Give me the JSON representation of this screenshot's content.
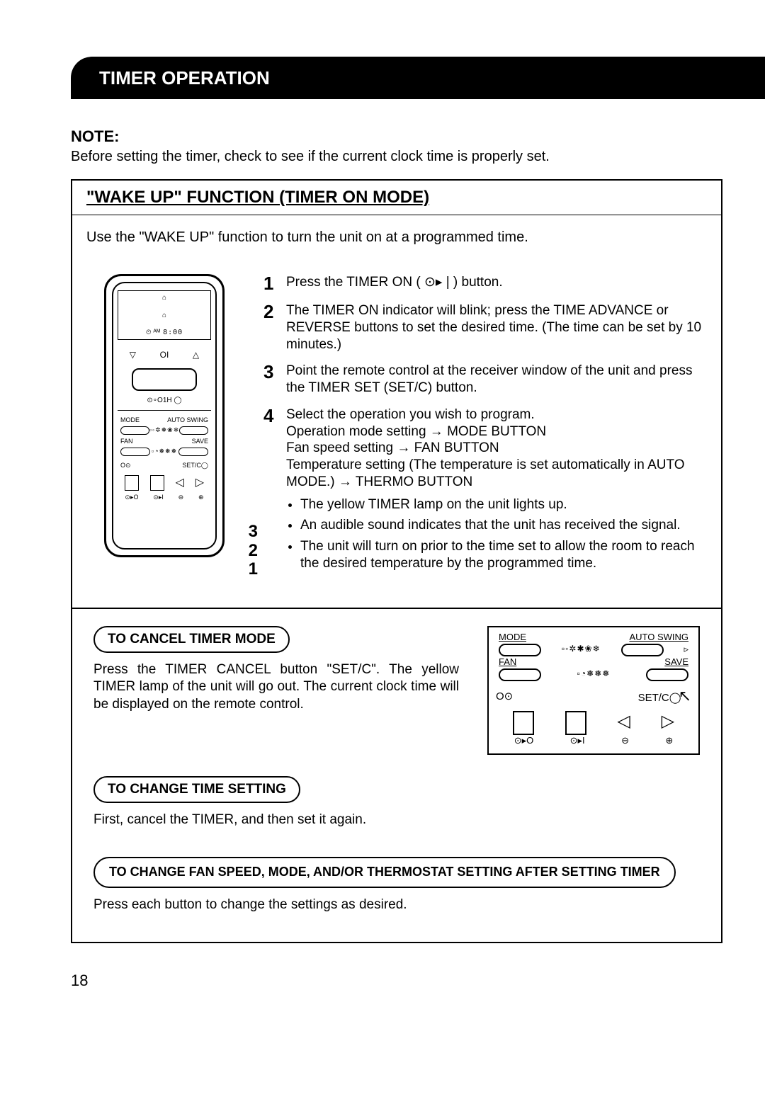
{
  "header": "TIMER OPERATION",
  "note_label": "NOTE:",
  "note_text": "Before setting the timer, check to see if the current clock time is properly set.",
  "section_heading": "\"WAKE UP\" FUNCTION (TIMER ON MODE)",
  "intro": "Use the \"WAKE UP\" function to turn the unit on at a programmed time.",
  "remote": {
    "lcd_time": "8:00",
    "lcd_sym": "⏲ ᴬᴹ",
    "row_sym_left": "▽",
    "row_sym_mid": "OI",
    "row_sym_right": "△",
    "small_text": "⊙∘O1H ◯",
    "label_mode": "MODE",
    "label_auto": "AUTO SWING",
    "dots1": "▫◦✲❅❀❄",
    "label_fan": "FAN",
    "label_save": "SAVE",
    "dots2": "▫◔❅❅❅",
    "mid_left": "O⊙",
    "mid_right": "SET/C◯",
    "ur1": "⊙▸O",
    "ur2": "⊙▸I",
    "ur3": "⊖",
    "ur4": "⊕",
    "side3": "3",
    "side2": "2",
    "side1": "1"
  },
  "steps": [
    {
      "n": "1",
      "body": "Press the TIMER ON ( ⊙▸ | ) button."
    },
    {
      "n": "2",
      "body": "The TIMER ON indicator will blink; press the TIME ADVANCE or REVERSE buttons to set the desired time. (The time can be set by 10 minutes.)"
    },
    {
      "n": "3",
      "body": "Point the remote control at the receiver window of the unit and press the TIMER SET (SET/C) button."
    },
    {
      "n": "4",
      "body": "Select the operation you wish to program.\nOperation mode setting → MODE BUTTON\nFan speed setting → FAN BUTTON\nTemperature setting (The temperature is set automatically in AUTO MODE.) → THERMO BUTTON",
      "bullets": [
        "The yellow TIMER lamp on the unit lights up.",
        "An audible sound indicates that the unit has received the signal.",
        "The unit will turn on prior to the time set to allow the room to reach the desired temperature by the programmed time."
      ]
    }
  ],
  "cancel_heading": "TO CANCEL TIMER MODE",
  "cancel_text": "Press the TIMER CANCEL button \"SET/C\". The yellow TIMER lamp of the unit will go out. The current clock time will be displayed on the remote control.",
  "change_heading": "TO CHANGE TIME SETTING",
  "change_text": "First, cancel the TIMER, and then set it again.",
  "fan_heading": "TO CHANGE FAN SPEED, MODE, AND/OR THERMOSTAT SETTING AFTER SETTING TIMER",
  "fan_text": "Press each button to change the settings as desired.",
  "panel": {
    "mode": "MODE",
    "auto": "AUTO SWING",
    "dots1": "▫◦✲✱❀❄",
    "fan": "FAN",
    "save": "SAVE",
    "dots2": "▫◔❅❅❅",
    "mid_left": "O⊙",
    "mid_right": "SET/C◯",
    "ur1": "⊙▸O",
    "ur2": "⊙▸I",
    "ur3": "⊖",
    "ur4": "⊕"
  },
  "page": "18"
}
